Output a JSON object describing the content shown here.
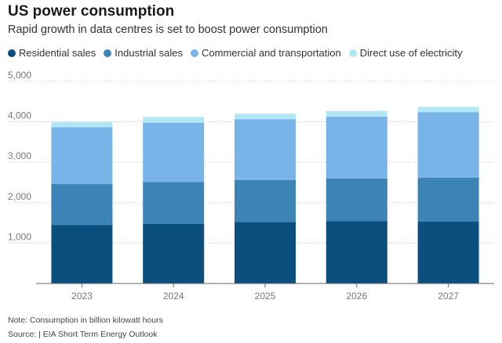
{
  "title": "US power consumption",
  "subtitle": "Rapid growth in data centres is set to boost power consumption",
  "note": "Note: Consumption in billion kilowatt hours",
  "source": "Source:  | EIA Short Term Energy Outlook",
  "colors": {
    "residential": "#0b4f7e",
    "industrial": "#3c84b6",
    "commercial": "#79b4e8",
    "direct": "#b3e6f5",
    "axis": "#666666",
    "grid": "#cccccc"
  },
  "chart_data": {
    "type": "bar",
    "stacked": true,
    "categories": [
      "2023",
      "2024",
      "2025",
      "2026",
      "2027"
    ],
    "series": [
      {
        "name": "Residential sales",
        "values": [
          1450,
          1480,
          1520,
          1540,
          1530
        ]
      },
      {
        "name": "Industrial sales",
        "values": [
          1010,
          1030,
          1040,
          1060,
          1090
        ]
      },
      {
        "name": "Commercial and transportation",
        "values": [
          1410,
          1470,
          1500,
          1530,
          1620
        ]
      },
      {
        "name": "Direct use of electricity",
        "values": [
          130,
          140,
          140,
          140,
          130
        ]
      }
    ],
    "ylim": [
      0,
      5000
    ],
    "yticks": [
      0,
      1000,
      2000,
      3000,
      4000,
      5000
    ],
    "ytick_labels": [
      "",
      "1,000",
      "2,000",
      "3,000",
      "4,000",
      "5,000"
    ],
    "grid": true,
    "legend_position": "top"
  }
}
